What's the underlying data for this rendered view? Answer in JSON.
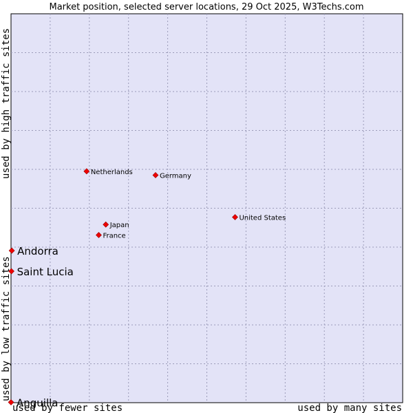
{
  "chart_data": {
    "type": "scatter",
    "title": "Market position, selected server locations, 29 Oct 2025, W3Techs.com",
    "xlabel_left": "used by fewer sites",
    "xlabel_right": "used by many sites",
    "ylabel_bottom": "used by low traffic sites",
    "ylabel_top": "used by high traffic sites",
    "xlim": [
      0,
      100
    ],
    "ylim": [
      0,
      100
    ],
    "grid": true,
    "background_color": "#e3e3f7",
    "grid_color": "#9a9ab8",
    "point_color": "#ee0000",
    "points": [
      {
        "label": "Netherlands",
        "x": 19.3,
        "y": 59.5,
        "size": "small"
      },
      {
        "label": "Germany",
        "x": 36.9,
        "y": 58.5,
        "size": "small"
      },
      {
        "label": "United States",
        "x": 57.2,
        "y": 47.7,
        "size": "small"
      },
      {
        "label": "Japan",
        "x": 24.2,
        "y": 45.8,
        "size": "small"
      },
      {
        "label": "France",
        "x": 22.4,
        "y": 43.1,
        "size": "small"
      },
      {
        "label": "Andorra",
        "x": 0.2,
        "y": 39.1,
        "size": "big"
      },
      {
        "label": "Saint Lucia",
        "x": 0.1,
        "y": 33.8,
        "size": "big"
      },
      {
        "label": "Anguilla",
        "x": 0.0,
        "y": 0.1,
        "size": "big"
      }
    ]
  }
}
